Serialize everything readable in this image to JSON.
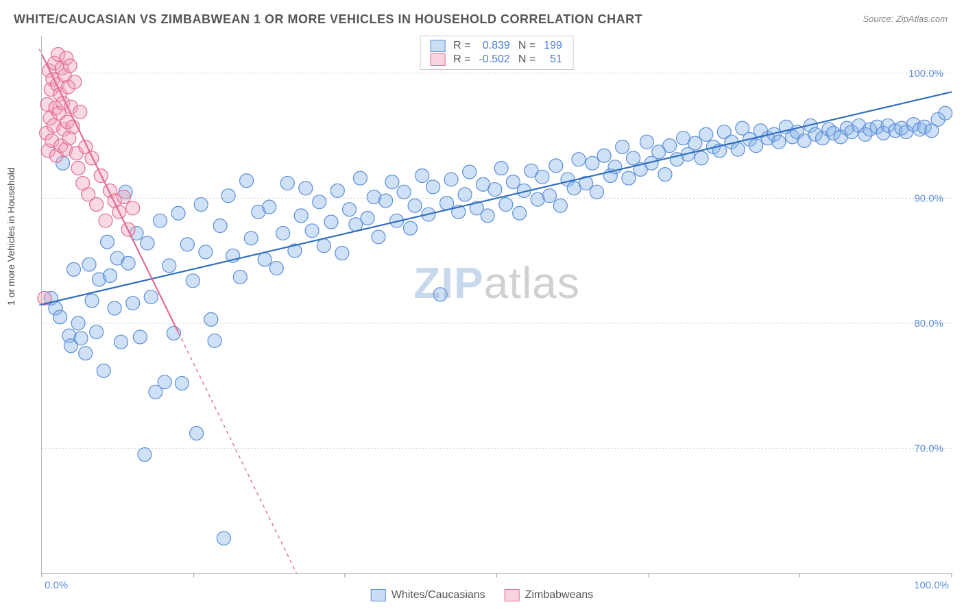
{
  "title": "WHITE/CAUCASIAN VS ZIMBABWEAN 1 OR MORE VEHICLES IN HOUSEHOLD CORRELATION CHART",
  "source": "Source: ZipAtlas.com",
  "y_axis_label": "1 or more Vehicles in Household",
  "watermark": {
    "zip": "ZIP",
    "atlas": "atlas"
  },
  "chart": {
    "type": "scatter",
    "xlim": [
      0,
      100
    ],
    "ylim": [
      60,
      103
    ],
    "y_ticks": [
      70,
      80,
      90,
      100
    ],
    "y_tick_labels": [
      "70.0%",
      "80.0%",
      "90.0%",
      "100.0%"
    ],
    "x_tick_positions": [
      0,
      16.7,
      33.3,
      50,
      66.7,
      83.3,
      100
    ],
    "x_label_start": "0.0%",
    "x_label_end": "100.0%",
    "grid_color": "#cccccc",
    "background_color": "#ffffff",
    "marker_radius": 10,
    "series": [
      {
        "name": "Whites/Caucasians",
        "color_fill": "rgba(135,180,232,0.40)",
        "color_stroke": "#5b8dd6",
        "trend_color": "#2f6fc0",
        "trend": {
          "x1": 0,
          "y1": 81.5,
          "x2": 100,
          "y2": 98.5
        },
        "points": [
          [
            1,
            82
          ],
          [
            1.5,
            81.2
          ],
          [
            2,
            80.5
          ],
          [
            2.3,
            92.8
          ],
          [
            3,
            79
          ],
          [
            3.2,
            78.2
          ],
          [
            3.5,
            84.3
          ],
          [
            4,
            80
          ],
          [
            4.3,
            78.8
          ],
          [
            4.8,
            77.6
          ],
          [
            5.2,
            84.7
          ],
          [
            5.5,
            81.8
          ],
          [
            6,
            79.3
          ],
          [
            6.3,
            83.5
          ],
          [
            6.8,
            76.2
          ],
          [
            7.2,
            86.5
          ],
          [
            7.5,
            83.8
          ],
          [
            8,
            81.2
          ],
          [
            8.3,
            85.2
          ],
          [
            8.7,
            78.5
          ],
          [
            9.2,
            90.5
          ],
          [
            9.5,
            84.8
          ],
          [
            10,
            81.6
          ],
          [
            10.4,
            87.2
          ],
          [
            10.8,
            78.9
          ],
          [
            11.3,
            69.5
          ],
          [
            11.6,
            86.4
          ],
          [
            12,
            82.1
          ],
          [
            12.5,
            74.5
          ],
          [
            13,
            88.2
          ],
          [
            13.5,
            75.3
          ],
          [
            14,
            84.6
          ],
          [
            14.5,
            79.2
          ],
          [
            15,
            88.8
          ],
          [
            15.4,
            75.2
          ],
          [
            16,
            86.3
          ],
          [
            16.6,
            83.4
          ],
          [
            17,
            71.2
          ],
          [
            17.5,
            89.5
          ],
          [
            18,
            85.7
          ],
          [
            18.6,
            80.3
          ],
          [
            19,
            78.6
          ],
          [
            19.6,
            87.8
          ],
          [
            20,
            62.8
          ],
          [
            20.5,
            90.2
          ],
          [
            21,
            85.4
          ],
          [
            21.8,
            83.7
          ],
          [
            22.5,
            91.4
          ],
          [
            23,
            86.8
          ],
          [
            23.8,
            88.9
          ],
          [
            24.5,
            85.1
          ],
          [
            25,
            89.3
          ],
          [
            25.8,
            84.4
          ],
          [
            26.5,
            87.2
          ],
          [
            27,
            91.2
          ],
          [
            27.8,
            85.8
          ],
          [
            28.5,
            88.6
          ],
          [
            29,
            90.8
          ],
          [
            29.7,
            87.4
          ],
          [
            30.5,
            89.7
          ],
          [
            31,
            86.2
          ],
          [
            31.8,
            88.1
          ],
          [
            32.5,
            90.6
          ],
          [
            33,
            85.6
          ],
          [
            33.8,
            89.1
          ],
          [
            34.5,
            87.9
          ],
          [
            35,
            91.6
          ],
          [
            35.8,
            88.4
          ],
          [
            36.5,
            90.1
          ],
          [
            37,
            86.9
          ],
          [
            37.8,
            89.8
          ],
          [
            38.5,
            91.3
          ],
          [
            39,
            88.2
          ],
          [
            39.8,
            90.5
          ],
          [
            40.5,
            87.6
          ],
          [
            41,
            89.4
          ],
          [
            41.8,
            91.8
          ],
          [
            42.5,
            88.7
          ],
          [
            43,
            90.9
          ],
          [
            43.8,
            82.3
          ],
          [
            44.5,
            89.6
          ],
          [
            45,
            91.5
          ],
          [
            45.8,
            88.9
          ],
          [
            46.5,
            90.3
          ],
          [
            47,
            92.1
          ],
          [
            47.8,
            89.2
          ],
          [
            48.5,
            91.1
          ],
          [
            49,
            88.6
          ],
          [
            49.8,
            90.7
          ],
          [
            50.5,
            92.4
          ],
          [
            51,
            89.5
          ],
          [
            51.8,
            91.3
          ],
          [
            52.5,
            88.8
          ],
          [
            53,
            90.6
          ],
          [
            53.8,
            92.2
          ],
          [
            54.5,
            89.9
          ],
          [
            55,
            91.7
          ],
          [
            55.8,
            90.2
          ],
          [
            56.5,
            92.6
          ],
          [
            57,
            89.4
          ],
          [
            57.8,
            91.5
          ],
          [
            58.5,
            90.8
          ],
          [
            59,
            93.1
          ],
          [
            59.8,
            91.2
          ],
          [
            60.5,
            92.8
          ],
          [
            61,
            90.5
          ],
          [
            61.8,
            93.4
          ],
          [
            62.5,
            91.8
          ],
          [
            63,
            92.5
          ],
          [
            63.8,
            94.1
          ],
          [
            64.5,
            91.6
          ],
          [
            65,
            93.2
          ],
          [
            65.8,
            92.3
          ],
          [
            66.5,
            94.5
          ],
          [
            67,
            92.8
          ],
          [
            67.8,
            93.7
          ],
          [
            68.5,
            91.9
          ],
          [
            69,
            94.2
          ],
          [
            69.8,
            93.1
          ],
          [
            70.5,
            94.8
          ],
          [
            71,
            93.5
          ],
          [
            71.8,
            94.4
          ],
          [
            72.5,
            93.2
          ],
          [
            73,
            95.1
          ],
          [
            73.8,
            94.1
          ],
          [
            74.5,
            93.8
          ],
          [
            75,
            95.3
          ],
          [
            75.8,
            94.5
          ],
          [
            76.5,
            93.9
          ],
          [
            77,
            95.6
          ],
          [
            77.8,
            94.7
          ],
          [
            78.5,
            94.2
          ],
          [
            79,
            95.4
          ],
          [
            79.8,
            94.8
          ],
          [
            80.5,
            95.1
          ],
          [
            81,
            94.5
          ],
          [
            81.8,
            95.7
          ],
          [
            82.5,
            94.9
          ],
          [
            83,
            95.3
          ],
          [
            83.8,
            94.6
          ],
          [
            84.5,
            95.8
          ],
          [
            85,
            95.1
          ],
          [
            85.8,
            94.8
          ],
          [
            86.5,
            95.5
          ],
          [
            87,
            95.2
          ],
          [
            87.8,
            94.9
          ],
          [
            88.5,
            95.6
          ],
          [
            89,
            95.3
          ],
          [
            89.8,
            95.8
          ],
          [
            90.5,
            95.1
          ],
          [
            91,
            95.5
          ],
          [
            91.8,
            95.7
          ],
          [
            92.5,
            95.2
          ],
          [
            93,
            95.8
          ],
          [
            93.8,
            95.4
          ],
          [
            94.5,
            95.6
          ],
          [
            95,
            95.3
          ],
          [
            95.8,
            95.9
          ],
          [
            96.5,
            95.5
          ],
          [
            97,
            95.7
          ],
          [
            97.8,
            95.4
          ],
          [
            98.5,
            96.3
          ],
          [
            99.3,
            96.8
          ]
        ]
      },
      {
        "name": "Zimbabweans",
        "color_fill": "rgba(240,160,185,0.40)",
        "color_stroke": "#e26b94",
        "trend_color": "#e26b94",
        "trend": {
          "x1": 0,
          "y1": 101.5,
          "x2": 28,
          "y2": 60
        },
        "points": [
          [
            0.3,
            82
          ],
          [
            0.5,
            95.2
          ],
          [
            0.6,
            97.5
          ],
          [
            0.7,
            93.8
          ],
          [
            0.8,
            100.2
          ],
          [
            0.9,
            96.4
          ],
          [
            1.0,
            98.7
          ],
          [
            1.1,
            94.6
          ],
          [
            1.2,
            99.5
          ],
          [
            1.3,
            95.8
          ],
          [
            1.4,
            100.8
          ],
          [
            1.5,
            97.2
          ],
          [
            1.6,
            93.4
          ],
          [
            1.7,
            99.1
          ],
          [
            1.8,
            101.5
          ],
          [
            1.9,
            96.8
          ],
          [
            2.0,
            98.3
          ],
          [
            2.1,
            94.2
          ],
          [
            2.2,
            100.4
          ],
          [
            2.3,
            97.6
          ],
          [
            2.4,
            95.5
          ],
          [
            2.5,
            99.8
          ],
          [
            2.6,
            93.9
          ],
          [
            2.7,
            101.2
          ],
          [
            2.8,
            96.1
          ],
          [
            2.9,
            98.9
          ],
          [
            3.0,
            94.8
          ],
          [
            3.1,
            100.6
          ],
          [
            3.2,
            97.3
          ],
          [
            3.4,
            95.7
          ],
          [
            3.6,
            99.3
          ],
          [
            3.8,
            93.6
          ],
          [
            4.0,
            92.4
          ],
          [
            4.2,
            96.9
          ],
          [
            4.5,
            91.2
          ],
          [
            4.8,
            94.1
          ],
          [
            5.1,
            90.3
          ],
          [
            5.5,
            93.2
          ],
          [
            6.0,
            89.5
          ],
          [
            6.5,
            91.8
          ],
          [
            7.0,
            88.2
          ],
          [
            7.5,
            90.6
          ],
          [
            8.0,
            89.8
          ],
          [
            8.5,
            88.9
          ],
          [
            9.0,
            90.1
          ],
          [
            9.5,
            87.5
          ],
          [
            10.0,
            89.2
          ]
        ]
      }
    ]
  },
  "legend_top": {
    "rows": [
      {
        "swatch": "blue",
        "r_label": "R =",
        "r_val": "0.839",
        "n_label": "N =",
        "n_val": "199"
      },
      {
        "swatch": "pink",
        "r_label": "R =",
        "r_val": "-0.502",
        "n_label": "N =",
        "n_val": "51"
      }
    ]
  },
  "legend_bottom": {
    "items": [
      {
        "swatch": "blue",
        "label": "Whites/Caucasians"
      },
      {
        "swatch": "pink",
        "label": "Zimbabweans"
      }
    ]
  }
}
